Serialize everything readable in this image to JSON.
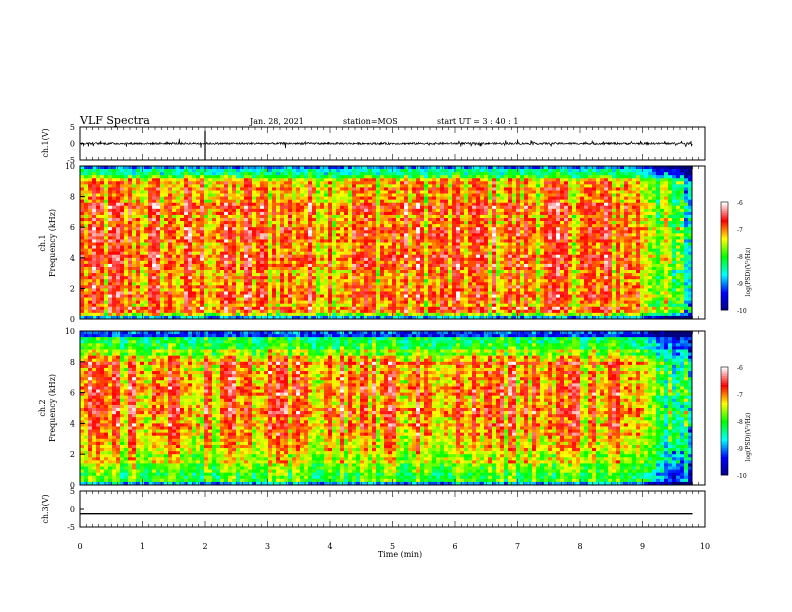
{
  "header": {
    "title": "VLF Spectra",
    "date": "Jan. 28, 2021",
    "station": "station=MOS",
    "start_ut": "start  UT =  3 : 40 : 1"
  },
  "chart_data": [
    {
      "type": "line",
      "panel": "ch1-waveform",
      "ylabel": "ch.1(V)",
      "yticks": [
        "5",
        "0",
        "-5"
      ],
      "ylim": [
        -5,
        5
      ],
      "series": [
        {
          "values_description_level": 0.0
        }
      ]
    },
    {
      "type": "heatmap",
      "panel": "ch1-spectrogram",
      "ylabel_line1": "ch.1",
      "ylabel_line2": "Frequency (kHz)",
      "yticks": [
        "0",
        "2",
        "4",
        "6",
        "8",
        "10"
      ],
      "ylim": [
        0,
        10
      ],
      "xlim": [
        0,
        10
      ],
      "colorbar": {
        "label": "log(PSD)(V²/Hz)",
        "ticks": [
          "-6",
          "-7",
          "-8",
          "-9",
          "-10"
        ],
        "range": [
          -10,
          -6
        ]
      },
      "features": {
        "red_band_khz": [
          0.5,
          9.0
        ],
        "fade_start_min": 8.9
      }
    },
    {
      "type": "heatmap",
      "panel": "ch2-spectrogram",
      "ylabel_line1": "ch.2",
      "ylabel_line2": "Frequency (kHz)",
      "yticks": [
        "0",
        "2",
        "4",
        "6",
        "8",
        "10"
      ],
      "ylim": [
        0,
        10
      ],
      "xlim": [
        0,
        10
      ],
      "colorbar": {
        "label": "log(PSD)(V²/Hz)",
        "ticks": [
          "-6",
          "-7",
          "-8",
          "-9",
          "-10"
        ],
        "range": [
          -10,
          -6
        ]
      },
      "features": {
        "red_band_khz": [
          3.0,
          8.0
        ],
        "fade_start_min": 8.9
      }
    },
    {
      "type": "line",
      "panel": "ch3-waveform",
      "ylabel": "ch.3(V)",
      "yticks": [
        "5",
        "0",
        "-5"
      ],
      "ylim": [
        -5,
        5
      ],
      "series": [
        {
          "level": -1.3
        }
      ]
    }
  ],
  "xaxis": {
    "label": "Time (min)",
    "ticks": [
      "0",
      "1",
      "2",
      "3",
      "4",
      "5",
      "6",
      "7",
      "8",
      "9",
      "10"
    ]
  },
  "colors": {
    "colormap": [
      "#000080",
      "#0000ff",
      "#00ffff",
      "#00ff00",
      "#ffff00",
      "#ff0000",
      "#ffffff"
    ]
  }
}
